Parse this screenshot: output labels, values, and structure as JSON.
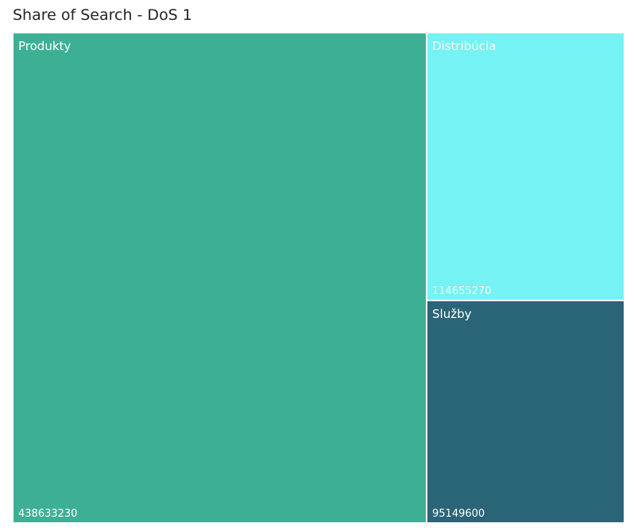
{
  "chart_data": {
    "type": "treemap",
    "title": "Share of Search - DoS 1",
    "data_labels": true,
    "items": [
      {
        "name": "Produkty",
        "value": 438633230,
        "color": "#3DB094"
      },
      {
        "name": "Distribúcia",
        "value": 114655270,
        "color": "#74F2F4"
      },
      {
        "name": "Služby",
        "value": 95149600,
        "color": "#2A6477"
      }
    ]
  }
}
